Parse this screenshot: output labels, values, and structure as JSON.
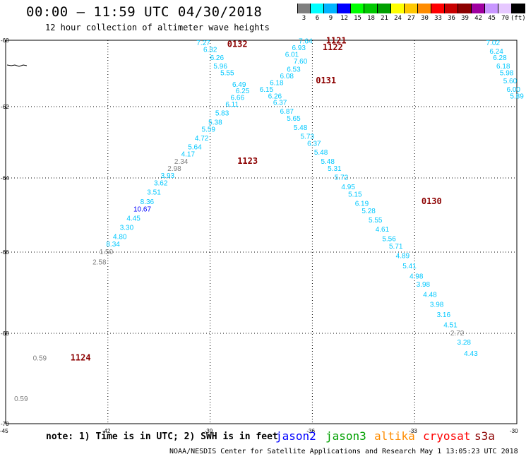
{
  "header": {
    "title": "00:00 – 11:59 UTC 04/30/2018",
    "subtitle": "12 hour collection of altimeter wave heights"
  },
  "legend": {
    "labels": [
      "3",
      "6",
      "9",
      "12",
      "15",
      "18",
      "21",
      "24",
      "27",
      "30",
      "33",
      "36",
      "39",
      "42",
      "45",
      "70",
      "(ft)"
    ],
    "colors": [
      "#7f7f7f",
      "#00ffff",
      "#00b4ff",
      "#0000ff",
      "#00ff00",
      "#00c800",
      "#00a000",
      "#ffff00",
      "#ffc800",
      "#ff8c00",
      "#ff0000",
      "#c80000",
      "#8c0000",
      "#a000a0",
      "#c896ff",
      "#e6c8ff",
      "#000000"
    ]
  },
  "axes": {
    "lat_labels": [
      "-60",
      "-62",
      "-64",
      "-66",
      "-68",
      "-70"
    ],
    "lon_labels": [
      "-45",
      "-42",
      "-39",
      "-36",
      "-33",
      "-30"
    ]
  },
  "chart_data": {
    "type": "scatter",
    "note": "Significant wave height (ft) along altimeter tracks",
    "passes": [
      {
        "label": "0132",
        "lon": -38.5,
        "lat": -60.2
      },
      {
        "label": "1121",
        "lon": -35.6,
        "lat": -60.1
      },
      {
        "label": "1122",
        "lon": -35.7,
        "lat": -60.3
      },
      {
        "label": "0131",
        "lon": -35.9,
        "lat": -61.3
      },
      {
        "label": "1123",
        "lon": -38.2,
        "lat": -63.6
      },
      {
        "label": "0130",
        "lon": -32.8,
        "lat": -64.7
      },
      {
        "label": "1124",
        "lon": -43.1,
        "lat": -68.6
      }
    ],
    "points": [
      {
        "v": "7.27",
        "lon": -39.4,
        "lat": -60.15,
        "c": "#00c8ff"
      },
      {
        "v": "6.32",
        "lon": -39.2,
        "lat": -60.35,
        "c": "#00c8ff"
      },
      {
        "v": "6.26",
        "lon": -39.0,
        "lat": -60.6,
        "c": "#00c8ff"
      },
      {
        "v": "5.96",
        "lon": -38.9,
        "lat": -60.85,
        "c": "#00c8ff"
      },
      {
        "v": "5.55",
        "lon": -38.7,
        "lat": -61.05,
        "c": "#00c8ff"
      },
      {
        "v": "6.49",
        "lon": -38.35,
        "lat": -61.4,
        "c": "#00c8ff"
      },
      {
        "v": "6.25",
        "lon": -38.25,
        "lat": -61.6,
        "c": "#00c8ff"
      },
      {
        "v": "6.66",
        "lon": -38.4,
        "lat": -61.8,
        "c": "#00c8ff"
      },
      {
        "v": "6.11",
        "lon": -38.55,
        "lat": -62.0,
        "c": "#00c8ff"
      },
      {
        "v": "5.83",
        "lon": -38.85,
        "lat": -62.25,
        "c": "#00c8ff"
      },
      {
        "v": "5.38",
        "lon": -39.05,
        "lat": -62.5,
        "c": "#00c8ff"
      },
      {
        "v": "5.59",
        "lon": -39.25,
        "lat": -62.7,
        "c": "#00c8ff"
      },
      {
        "v": "4.72",
        "lon": -39.45,
        "lat": -62.95,
        "c": "#00c8ff"
      },
      {
        "v": "5.64",
        "lon": -39.65,
        "lat": -63.2,
        "c": "#00c8ff"
      },
      {
        "v": "4.17",
        "lon": -39.85,
        "lat": -63.4,
        "c": "#00c8ff"
      },
      {
        "v": "2.34",
        "lon": -40.05,
        "lat": -63.6,
        "c": "#7f7f7f"
      },
      {
        "v": "2.98",
        "lon": -40.25,
        "lat": -63.8,
        "c": "#7f7f7f"
      },
      {
        "v": "3.93",
        "lon": -40.45,
        "lat": -64.0,
        "c": "#00c8ff"
      },
      {
        "v": "3.62",
        "lon": -40.65,
        "lat": -64.2,
        "c": "#00c8ff"
      },
      {
        "v": "3.51",
        "lon": -40.85,
        "lat": -64.45,
        "c": "#00c8ff"
      },
      {
        "v": "8.36",
        "lon": -41.05,
        "lat": -64.7,
        "c": "#00c8ff"
      },
      {
        "v": "10.67",
        "lon": -41.25,
        "lat": -64.9,
        "c": "#0000ff"
      },
      {
        "v": "4.45",
        "lon": -41.45,
        "lat": -65.15,
        "c": "#00c8ff"
      },
      {
        "v": "3.30",
        "lon": -41.65,
        "lat": -65.4,
        "c": "#00c8ff"
      },
      {
        "v": "4.80",
        "lon": -41.85,
        "lat": -65.65,
        "c": "#00c8ff"
      },
      {
        "v": "8.34",
        "lon": -42.05,
        "lat": -65.85,
        "c": "#00c8ff"
      },
      {
        "v": "1.50",
        "lon": -42.25,
        "lat": -66.05,
        "c": "#7f7f7f"
      },
      {
        "v": "2.58",
        "lon": -42.45,
        "lat": -66.3,
        "c": "#7f7f7f"
      },
      {
        "v": "7.64",
        "lon": -36.4,
        "lat": -60.1,
        "c": "#00c8ff"
      },
      {
        "v": "6.93",
        "lon": -36.6,
        "lat": -60.3,
        "c": "#00c8ff"
      },
      {
        "v": "6.01",
        "lon": -36.8,
        "lat": -60.5,
        "c": "#00c8ff"
      },
      {
        "v": "7.60",
        "lon": -36.55,
        "lat": -60.7,
        "c": "#00c8ff"
      },
      {
        "v": "6.53",
        "lon": -36.75,
        "lat": -60.95,
        "c": "#00c8ff"
      },
      {
        "v": "6.08",
        "lon": -36.95,
        "lat": -61.15,
        "c": "#00c8ff"
      },
      {
        "v": "6.18",
        "lon": -37.25,
        "lat": -61.35,
        "c": "#00c8ff"
      },
      {
        "v": "6.15",
        "lon": -37.55,
        "lat": -61.55,
        "c": "#00c8ff"
      },
      {
        "v": "6.26",
        "lon": -37.3,
        "lat": -61.75,
        "c": "#00c8ff"
      },
      {
        "v": "6.37",
        "lon": -37.15,
        "lat": -61.95,
        "c": "#00c8ff"
      },
      {
        "v": "6.87",
        "lon": -36.95,
        "lat": -62.2,
        "c": "#00c8ff"
      },
      {
        "v": "5.65",
        "lon": -36.75,
        "lat": -62.4,
        "c": "#00c8ff"
      },
      {
        "v": "5.48",
        "lon": -36.55,
        "lat": -62.65,
        "c": "#00c8ff"
      },
      {
        "v": "5.73",
        "lon": -36.35,
        "lat": -62.9,
        "c": "#00c8ff"
      },
      {
        "v": "6.37",
        "lon": -36.15,
        "lat": -63.1,
        "c": "#00c8ff"
      },
      {
        "v": "5.48",
        "lon": -35.95,
        "lat": -63.35,
        "c": "#00c8ff"
      },
      {
        "v": "5.48",
        "lon": -35.75,
        "lat": -63.6,
        "c": "#00c8ff"
      },
      {
        "v": "5.31",
        "lon": -35.55,
        "lat": -63.8,
        "c": "#00c8ff"
      },
      {
        "v": "5.72",
        "lon": -35.35,
        "lat": -64.05,
        "c": "#00c8ff"
      },
      {
        "v": "4.95",
        "lon": -35.15,
        "lat": -64.3,
        "c": "#00c8ff"
      },
      {
        "v": "5.15",
        "lon": -34.95,
        "lat": -64.5,
        "c": "#00c8ff"
      },
      {
        "v": "6.19",
        "lon": -34.75,
        "lat": -64.75,
        "c": "#00c8ff"
      },
      {
        "v": "5.28",
        "lon": -34.55,
        "lat": -64.95,
        "c": "#00c8ff"
      },
      {
        "v": "5.55",
        "lon": -34.35,
        "lat": -65.2,
        "c": "#00c8ff"
      },
      {
        "v": "4.61",
        "lon": -34.15,
        "lat": -65.45,
        "c": "#00c8ff"
      },
      {
        "v": "5.56",
        "lon": -33.95,
        "lat": -65.7,
        "c": "#00c8ff"
      },
      {
        "v": "5.71",
        "lon": -33.75,
        "lat": -65.9,
        "c": "#00c8ff"
      },
      {
        "v": "4.89",
        "lon": -33.55,
        "lat": -66.15,
        "c": "#00c8ff"
      },
      {
        "v": "5.41",
        "lon": -33.35,
        "lat": -66.4,
        "c": "#00c8ff"
      },
      {
        "v": "4.98",
        "lon": -33.15,
        "lat": -66.65,
        "c": "#00c8ff"
      },
      {
        "v": "3.98",
        "lon": -32.95,
        "lat": -66.85,
        "c": "#00c8ff"
      },
      {
        "v": "4.48",
        "lon": -32.75,
        "lat": -67.1,
        "c": "#00c8ff"
      },
      {
        "v": "3.98",
        "lon": -32.55,
        "lat": -67.35,
        "c": "#00c8ff"
      },
      {
        "v": "3.16",
        "lon": -32.35,
        "lat": -67.6,
        "c": "#00c8ff"
      },
      {
        "v": "4.51",
        "lon": -32.15,
        "lat": -67.85,
        "c": "#00c8ff"
      },
      {
        "v": "2.72",
        "lon": -31.95,
        "lat": -68.05,
        "c": "#7f7f7f"
      },
      {
        "v": "3.28",
        "lon": -31.75,
        "lat": -68.25,
        "c": "#00c8ff"
      },
      {
        "v": "4.43",
        "lon": -31.55,
        "lat": -68.5,
        "c": "#00c8ff"
      },
      {
        "v": "7.02",
        "lon": -30.9,
        "lat": -60.15,
        "c": "#00c8ff"
      },
      {
        "v": "6.24",
        "lon": -30.8,
        "lat": -60.4,
        "c": "#00c8ff"
      },
      {
        "v": "6.28",
        "lon": -30.7,
        "lat": -60.6,
        "c": "#00c8ff"
      },
      {
        "v": "6.18",
        "lon": -30.6,
        "lat": -60.85,
        "c": "#00c8ff"
      },
      {
        "v": "5.98",
        "lon": -30.5,
        "lat": -61.05,
        "c": "#00c8ff"
      },
      {
        "v": "5.60",
        "lon": -30.4,
        "lat": -61.3,
        "c": "#00c8ff"
      },
      {
        "v": "6.00",
        "lon": -30.3,
        "lat": -61.55,
        "c": "#00c8ff"
      },
      {
        "v": "5.89",
        "lon": -30.2,
        "lat": -61.75,
        "c": "#00c8ff"
      },
      {
        "v": "0.59",
        "lon": -44.2,
        "lat": -68.6,
        "c": "#7f7f7f"
      },
      {
        "v": "0.59",
        "lon": -44.75,
        "lat": -69.5,
        "c": "#7f7f7f"
      }
    ]
  },
  "note": "note: 1) Time is in UTC; 2) SWH is in feet",
  "satellites": [
    {
      "name": "jason2",
      "color": "#0000ff"
    },
    {
      "name": "jason3",
      "color": "#00a000"
    },
    {
      "name": "altika",
      "color": "#ff8c00"
    },
    {
      "name": "cryosat",
      "color": "#ff0000"
    },
    {
      "name": "s3a",
      "color": "#8c0000"
    }
  ],
  "footer": "NOAA/NESDIS Center for Satellite Applications and Research   May  1 13:05:23 UTC 2018"
}
